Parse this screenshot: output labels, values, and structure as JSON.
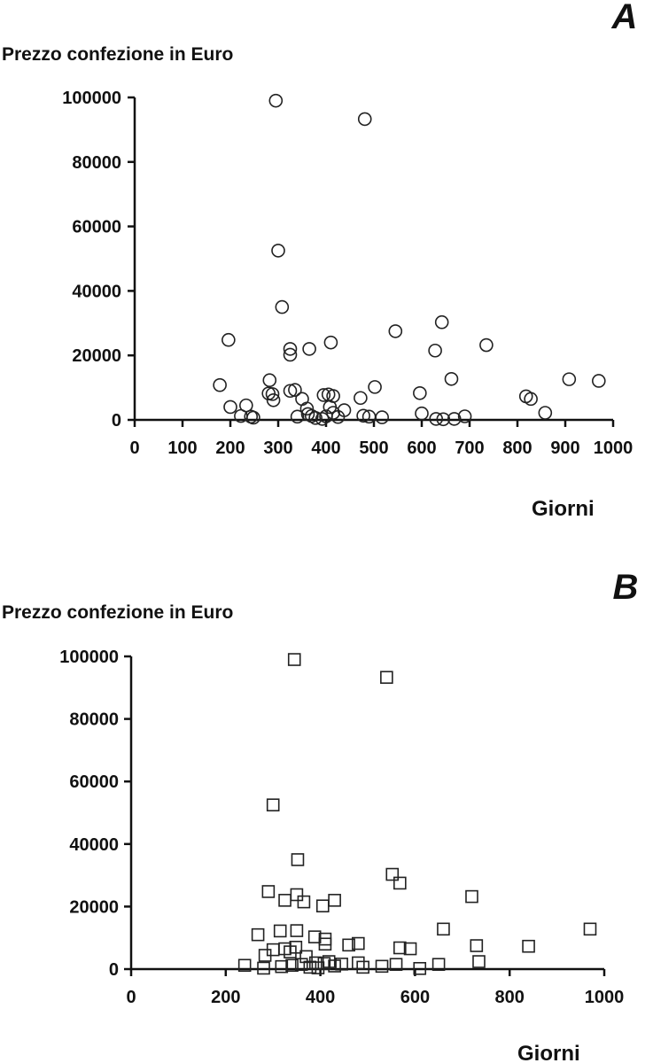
{
  "chart_data": [
    {
      "type": "scatter",
      "panel_label": "A",
      "title": "",
      "ylabel": "Prezzo confezione in Euro",
      "xlabel": "Giorni",
      "xlim": [
        0,
        1000
      ],
      "ylim": [
        0,
        100000
      ],
      "xticks": [
        0,
        100,
        200,
        300,
        400,
        500,
        600,
        700,
        800,
        900,
        1000
      ],
      "yticks": [
        0,
        20000,
        40000,
        60000,
        80000,
        100000
      ],
      "marker": "circle",
      "grid": false,
      "points": [
        [
          295,
          99000
        ],
        [
          481,
          93300
        ],
        [
          300,
          52500
        ],
        [
          308,
          35000
        ],
        [
          196,
          24800
        ],
        [
          325,
          22000
        ],
        [
          365,
          22000
        ],
        [
          410,
          24000
        ],
        [
          325,
          20200
        ],
        [
          545,
          27500
        ],
        [
          642,
          30300
        ],
        [
          628,
          21500
        ],
        [
          735,
          23200
        ],
        [
          178,
          10800
        ],
        [
          282,
          12300
        ],
        [
          325,
          9000
        ],
        [
          335,
          9300
        ],
        [
          280,
          8200
        ],
        [
          288,
          8000
        ],
        [
          290,
          6100
        ],
        [
          350,
          6500
        ],
        [
          395,
          7700
        ],
        [
          405,
          7900
        ],
        [
          415,
          7400
        ],
        [
          472,
          6800
        ],
        [
          502,
          10200
        ],
        [
          596,
          8300
        ],
        [
          662,
          12700
        ],
        [
          818,
          7300
        ],
        [
          828,
          6500
        ],
        [
          908,
          12600
        ],
        [
          970,
          12100
        ],
        [
          200,
          4000
        ],
        [
          233,
          4500
        ],
        [
          222,
          1200
        ],
        [
          243,
          1000
        ],
        [
          248,
          700
        ],
        [
          340,
          1000
        ],
        [
          360,
          3500
        ],
        [
          362,
          1800
        ],
        [
          370,
          1200
        ],
        [
          378,
          600
        ],
        [
          392,
          300
        ],
        [
          400,
          1100
        ],
        [
          408,
          4000
        ],
        [
          415,
          2200
        ],
        [
          425,
          900
        ],
        [
          438,
          3000
        ],
        [
          478,
          1300
        ],
        [
          490,
          1000
        ],
        [
          517,
          800
        ],
        [
          600,
          2000
        ],
        [
          630,
          300
        ],
        [
          645,
          200
        ],
        [
          668,
          300
        ],
        [
          690,
          1100
        ],
        [
          858,
          2200
        ]
      ]
    },
    {
      "type": "scatter",
      "panel_label": "B",
      "title": "",
      "ylabel": "Prezzo confezione in Euro",
      "xlabel": "Giorni",
      "xlim": [
        0,
        1000
      ],
      "ylim": [
        0,
        100000
      ],
      "xticks": [
        0,
        200,
        400,
        600,
        800,
        1000
      ],
      "yticks": [
        0,
        20000,
        40000,
        60000,
        80000,
        100000
      ],
      "marker": "square",
      "grid": false,
      "points": [
        [
          345,
          99000
        ],
        [
          540,
          93300
        ],
        [
          300,
          52500
        ],
        [
          352,
          35000
        ],
        [
          290,
          24800
        ],
        [
          552,
          30300
        ],
        [
          568,
          27500
        ],
        [
          720,
          23200
        ],
        [
          350,
          23800
        ],
        [
          325,
          22000
        ],
        [
          365,
          21500
        ],
        [
          430,
          22000
        ],
        [
          405,
          20200
        ],
        [
          660,
          12800
        ],
        [
          970,
          12800
        ],
        [
          268,
          11000
        ],
        [
          315,
          12200
        ],
        [
          350,
          12300
        ],
        [
          388,
          10300
        ],
        [
          410,
          9600
        ],
        [
          410,
          8000
        ],
        [
          460,
          7700
        ],
        [
          480,
          8200
        ],
        [
          568,
          6800
        ],
        [
          590,
          6500
        ],
        [
          730,
          7500
        ],
        [
          840,
          7300
        ],
        [
          283,
          4400
        ],
        [
          300,
          6200
        ],
        [
          325,
          6500
        ],
        [
          336,
          5500
        ],
        [
          348,
          7000
        ],
        [
          370,
          4000
        ],
        [
          390,
          2000
        ],
        [
          240,
          1200
        ],
        [
          280,
          300
        ],
        [
          318,
          800
        ],
        [
          340,
          1200
        ],
        [
          360,
          1500
        ],
        [
          378,
          600
        ],
        [
          395,
          400
        ],
        [
          408,
          1800
        ],
        [
          418,
          2400
        ],
        [
          430,
          1000
        ],
        [
          445,
          1600
        ],
        [
          480,
          2000
        ],
        [
          490,
          600
        ],
        [
          530,
          900
        ],
        [
          560,
          1500
        ],
        [
          610,
          200
        ],
        [
          650,
          1500
        ],
        [
          735,
          2400
        ]
      ]
    }
  ]
}
